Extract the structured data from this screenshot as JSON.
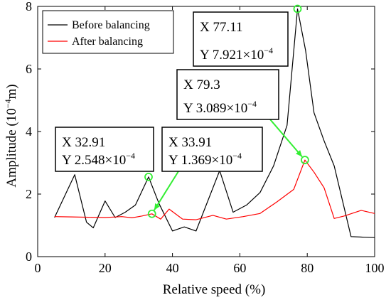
{
  "chart_data": {
    "type": "line",
    "xlabel": "Relative speed (%)",
    "ylabel_main": "Amplitude (10",
    "ylabel_exp": "−4",
    "ylabel_unit": "m)",
    "xlim": [
      0,
      100
    ],
    "ylim": [
      0,
      8
    ],
    "xticks": [
      0,
      20,
      40,
      60,
      80,
      100
    ],
    "yticks": [
      0,
      2,
      4,
      6,
      8
    ],
    "grid": false,
    "legend_position": "top-left",
    "series": [
      {
        "name": "Before balancing",
        "color": "#000000",
        "x": [
          5,
          11,
          14.5,
          16.5,
          20,
          23,
          26,
          29,
          32.91,
          36,
          40,
          43.5,
          47,
          54,
          58,
          62,
          66,
          70,
          74,
          77.11,
          79.5,
          82,
          85,
          88,
          93,
          97,
          100
        ],
        "y": [
          1.25,
          2.62,
          1.1,
          0.92,
          1.78,
          1.25,
          1.42,
          1.65,
          2.548,
          1.7,
          0.82,
          0.95,
          0.82,
          2.75,
          1.42,
          1.65,
          2.05,
          2.9,
          4.2,
          7.921,
          6.6,
          4.6,
          3.7,
          2.9,
          0.64,
          0.62,
          0.61
        ]
      },
      {
        "name": "After balancing",
        "color": "#ff0000",
        "x": [
          5,
          10,
          15,
          20,
          25,
          28,
          31,
          33.91,
          36.5,
          39,
          43,
          47,
          52,
          56,
          61,
          66,
          71,
          76,
          79.3,
          82,
          85,
          88,
          91,
          96,
          100
        ],
        "y": [
          1.28,
          1.27,
          1.26,
          1.25,
          1.28,
          1.24,
          1.3,
          1.369,
          1.2,
          1.52,
          1.2,
          1.18,
          1.32,
          1.2,
          1.28,
          1.38,
          1.75,
          2.15,
          3.089,
          2.7,
          2.2,
          1.22,
          1.3,
          1.48,
          1.38
        ]
      }
    ],
    "annotations": [
      {
        "x": 77.11,
        "y": 7.921,
        "line1": "X 77.11",
        "line2_pre": "Y 7.921×10",
        "line2_exp": "−4"
      },
      {
        "x": 79.3,
        "y": 3.089,
        "line1": "X 79.3",
        "line2_pre": "Y 3.089×10",
        "line2_exp": "−4"
      },
      {
        "x": 32.91,
        "y": 2.548,
        "line1": "X 32.91",
        "line2_pre": "Y 2.548×10",
        "line2_exp": "−4"
      },
      {
        "x": 33.91,
        "y": 1.369,
        "line1": "X 33.91",
        "line2_pre": "Y 1.369×10",
        "line2_exp": "−4"
      }
    ],
    "marker_color": "#33ee33"
  }
}
